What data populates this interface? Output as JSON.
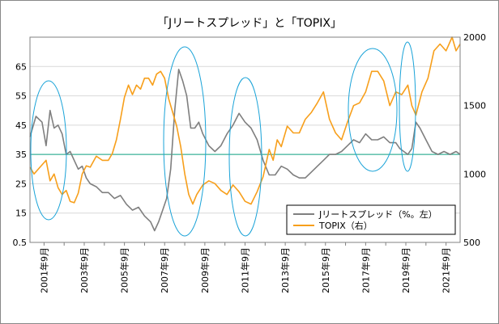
{
  "chart_data": {
    "type": "line",
    "title": "「Jリートスプレッド」と「TOPIX」",
    "xlabel": "",
    "ylabel": "",
    "x_ticks": [
      "2001年9月",
      "2003年9月",
      "2005年9月",
      "2007年9月",
      "2009年9月",
      "2011年9月",
      "2013年9月",
      "2015年9月",
      "2017年9月",
      "2019年9月",
      "2021年9月"
    ],
    "y_left_ticks": [
      "0.5",
      "15",
      "25",
      "35",
      "45",
      "55",
      "65"
    ],
    "y_right_ticks": [
      "500",
      "1000",
      "1500",
      "2000"
    ],
    "ylim_left": [
      5,
      75
    ],
    "ylim_right": [
      500,
      2000
    ],
    "reference_line": {
      "axis": "left",
      "value": 35
    },
    "legend_position": "bottom-right",
    "series": [
      {
        "name": "Jリートスプレッド（%。左）",
        "axis": "left",
        "color": "#7f7f7f",
        "x": [
          2001.0,
          2001.3,
          2001.6,
          2001.8,
          2002.0,
          2002.2,
          2002.4,
          2002.6,
          2002.8,
          2003.0,
          2003.2,
          2003.4,
          2003.6,
          2003.8,
          2004.0,
          2004.3,
          2004.6,
          2004.9,
          2005.2,
          2005.5,
          2005.8,
          2006.1,
          2006.4,
          2006.7,
          2007.0,
          2007.2,
          2007.4,
          2007.6,
          2007.8,
          2008.0,
          2008.2,
          2008.4,
          2008.6,
          2008.8,
          2009.0,
          2009.2,
          2009.4,
          2009.6,
          2009.9,
          2010.2,
          2010.5,
          2010.8,
          2011.1,
          2011.4,
          2011.7,
          2012.0,
          2012.3,
          2012.6,
          2012.9,
          2013.2,
          2013.5,
          2013.8,
          2014.1,
          2014.4,
          2014.7,
          2015.0,
          2015.3,
          2015.6,
          2015.9,
          2016.2,
          2016.5,
          2016.8,
          2017.1,
          2017.4,
          2017.7,
          2018.0,
          2018.3,
          2018.6,
          2018.9,
          2019.2,
          2019.4,
          2019.6,
          2019.8,
          2020.0,
          2020.2,
          2020.4,
          2020.7,
          2021.0,
          2021.3,
          2021.6,
          2021.9,
          2022.2,
          2022.4
        ],
        "y": [
          41,
          48,
          46,
          38,
          50,
          44,
          45,
          42,
          35,
          36,
          33,
          30,
          31,
          27,
          25,
          24,
          22,
          22,
          20,
          21,
          18,
          16,
          17,
          14,
          12,
          9,
          12,
          16,
          20,
          30,
          50,
          64,
          60,
          55,
          44,
          44,
          46,
          42,
          38,
          36,
          38,
          42,
          45,
          49,
          46,
          44,
          40,
          33,
          28,
          28,
          31,
          30,
          28,
          27,
          27,
          29,
          31,
          33,
          35,
          35,
          36,
          38,
          40,
          39,
          42,
          40,
          40,
          41,
          39,
          39,
          37,
          36,
          35,
          37,
          46,
          44,
          40,
          36,
          35,
          36,
          35,
          36,
          35
        ]
      },
      {
        "name": "TOPIX（右）",
        "axis": "right",
        "color": "#f79f1b",
        "x": [
          2001.0,
          2001.2,
          2001.5,
          2001.8,
          2002.0,
          2002.2,
          2002.4,
          2002.6,
          2002.8,
          2003.0,
          2003.2,
          2003.4,
          2003.6,
          2003.8,
          2004.0,
          2004.3,
          2004.6,
          2004.9,
          2005.1,
          2005.3,
          2005.5,
          2005.7,
          2005.9,
          2006.1,
          2006.3,
          2006.5,
          2006.7,
          2006.9,
          2007.1,
          2007.3,
          2007.5,
          2007.7,
          2007.9,
          2008.1,
          2008.3,
          2008.5,
          2008.7,
          2008.9,
          2009.1,
          2009.3,
          2009.6,
          2009.9,
          2010.2,
          2010.5,
          2010.8,
          2011.1,
          2011.4,
          2011.7,
          2012.0,
          2012.3,
          2012.6,
          2012.9,
          2013.1,
          2013.3,
          2013.5,
          2013.8,
          2014.1,
          2014.4,
          2014.7,
          2015.0,
          2015.3,
          2015.6,
          2015.9,
          2016.2,
          2016.5,
          2016.8,
          2017.1,
          2017.4,
          2017.7,
          2018.0,
          2018.3,
          2018.6,
          2018.9,
          2019.2,
          2019.5,
          2019.8,
          2020.0,
          2020.2,
          2020.5,
          2020.8,
          2021.1,
          2021.4,
          2021.7,
          2022.0,
          2022.2,
          2022.4
        ],
        "y": [
          1050,
          1000,
          1050,
          1100,
          950,
          1000,
          900,
          850,
          880,
          800,
          790,
          860,
          1000,
          1060,
          1050,
          1130,
          1100,
          1100,
          1150,
          1250,
          1400,
          1560,
          1650,
          1580,
          1650,
          1620,
          1700,
          1700,
          1650,
          1730,
          1750,
          1700,
          1550,
          1450,
          1350,
          1200,
          1000,
          850,
          780,
          850,
          920,
          950,
          930,
          880,
          850,
          920,
          870,
          800,
          780,
          870,
          980,
          1180,
          1100,
          1250,
          1200,
          1350,
          1300,
          1300,
          1400,
          1450,
          1520,
          1600,
          1400,
          1300,
          1250,
          1380,
          1500,
          1520,
          1600,
          1750,
          1750,
          1680,
          1500,
          1600,
          1580,
          1650,
          1500,
          1430,
          1600,
          1700,
          1900,
          1950,
          1900,
          2000,
          1900,
          1950
        ]
      }
    ]
  }
}
